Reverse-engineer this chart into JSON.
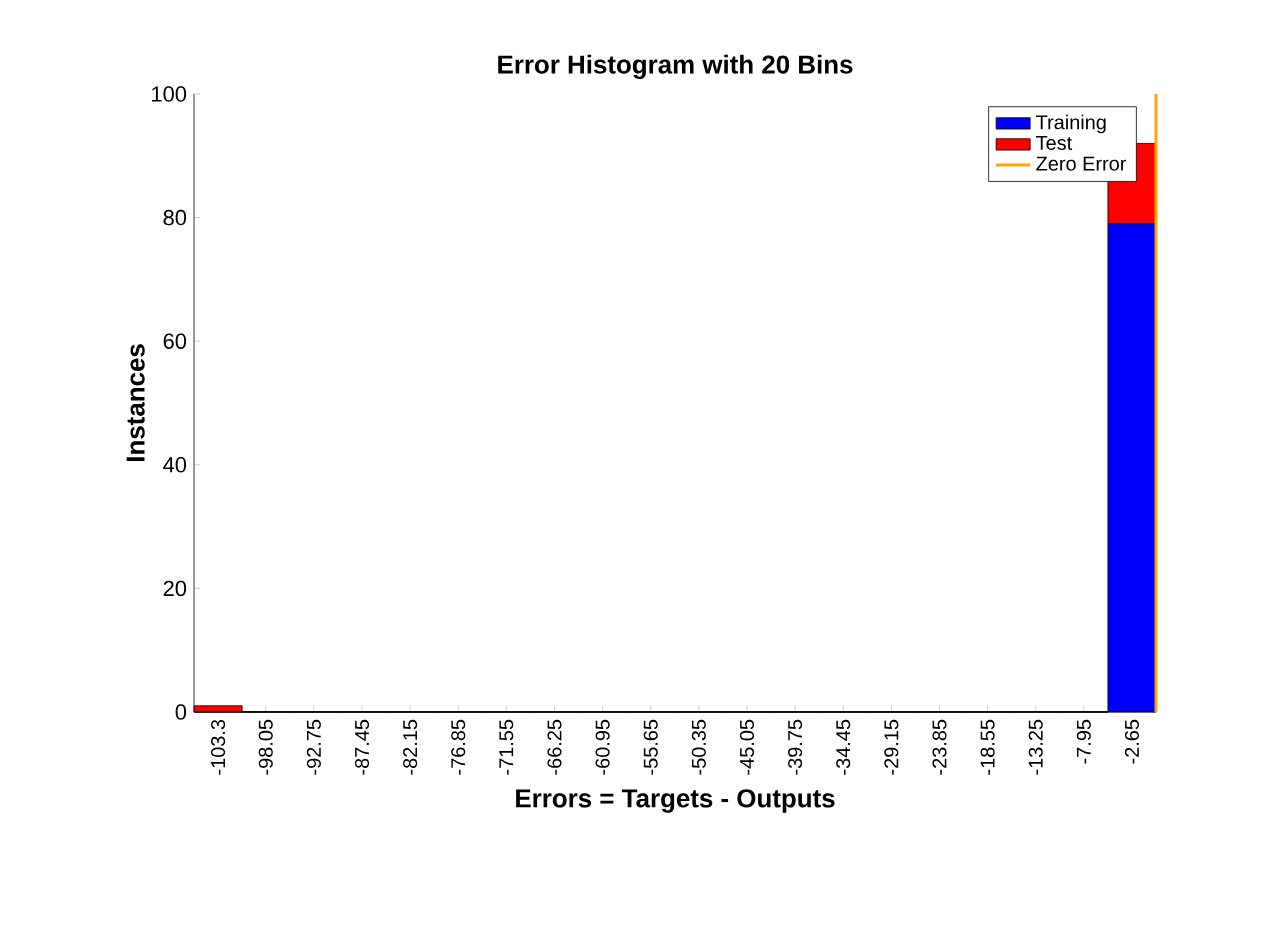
{
  "chart_data": {
    "type": "bar",
    "stacked": true,
    "title": "Error Histogram with 20 Bins",
    "xlabel": "Errors = Targets - Outputs",
    "ylabel": "Instances",
    "x": [
      -103.3,
      -98.05,
      -92.75,
      -87.45,
      -82.15,
      -76.85,
      -71.55,
      -66.25,
      -60.95,
      -55.65,
      -50.35,
      -45.05,
      -39.75,
      -34.45,
      -29.15,
      -23.85,
      -18.55,
      -13.25,
      -7.95,
      -2.65
    ],
    "xlim": [
      -105.95,
      0
    ],
    "xticks": [
      -103.3,
      -98.05,
      -92.75,
      -87.45,
      -82.15,
      -76.85,
      -71.55,
      -66.25,
      -60.95,
      -55.65,
      -50.35,
      -45.05,
      -39.75,
      -34.45,
      -29.15,
      -23.85,
      -18.55,
      -13.25,
      -7.95,
      -2.65
    ],
    "ylim": [
      0,
      100
    ],
    "yticks": [
      0,
      20,
      40,
      60,
      80,
      100
    ],
    "series": [
      {
        "name": "Training",
        "color": "#0000ff",
        "values": [
          0,
          0,
          0,
          0,
          0,
          0,
          0,
          0,
          0,
          0,
          0,
          0,
          0,
          0,
          0,
          0,
          0,
          0,
          0,
          79
        ]
      },
      {
        "name": "Test",
        "color": "#ff0000",
        "values": [
          1,
          0,
          0,
          0,
          0,
          0,
          0,
          0,
          0,
          0,
          0,
          0,
          0,
          0,
          0,
          0,
          0,
          0,
          0,
          13
        ]
      }
    ],
    "ref_lines": [
      {
        "axis": "x",
        "value": 0,
        "label": "Zero Error",
        "color": "#ffa500"
      }
    ],
    "legend": "top right",
    "grid": false
  }
}
